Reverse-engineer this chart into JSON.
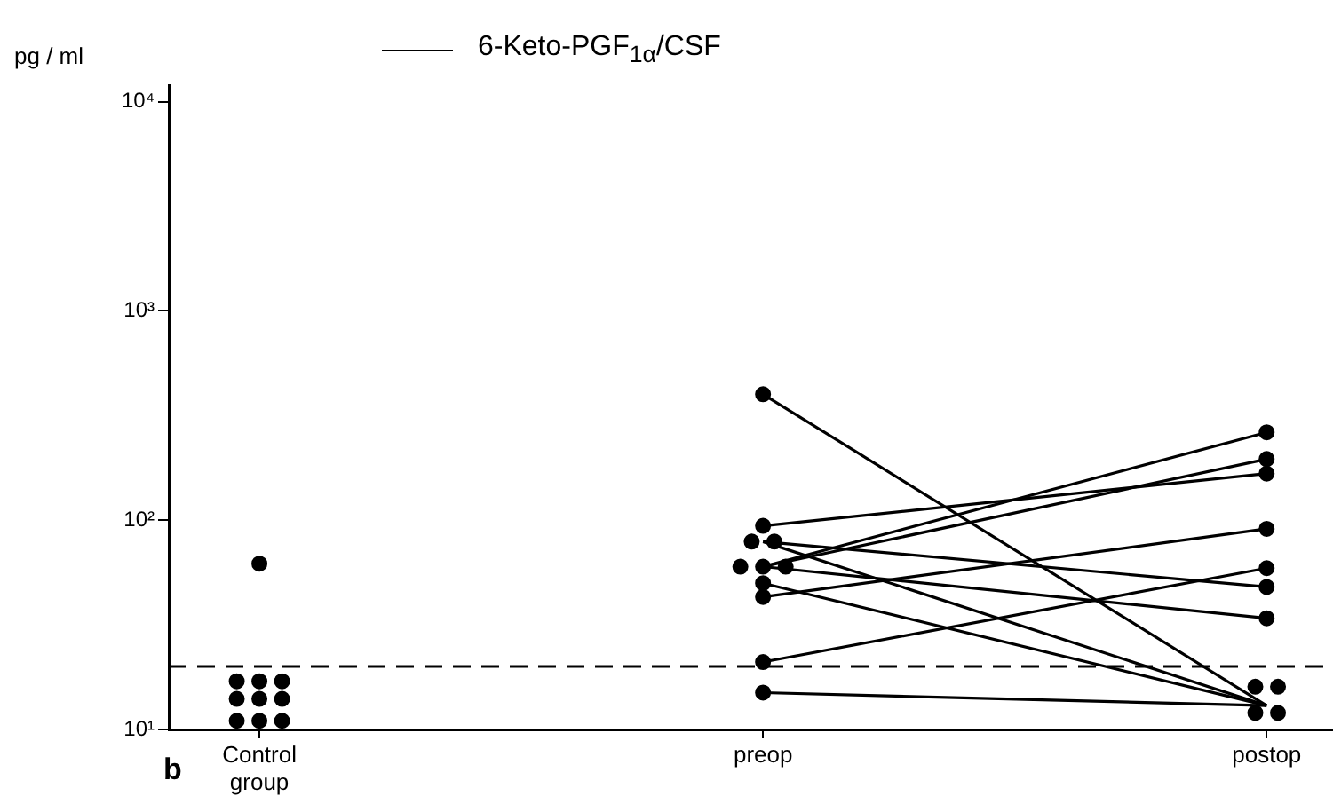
{
  "chart_data": {
    "type": "scatter",
    "ylabel": "pg / ml",
    "categories": [
      "Control group",
      "preop",
      "postop"
    ],
    "log": "y",
    "ylim": [
      10,
      12000
    ],
    "yticks": [
      {
        "value": 10,
        "label": "10¹"
      },
      {
        "value": 100,
        "label": "10²"
      },
      {
        "value": 1000,
        "label": "10³"
      },
      {
        "value": 10000,
        "label": "10⁴"
      }
    ],
    "legend": "top",
    "annotations": [
      "b"
    ],
    "ref_lines": [
      {
        "axis": "y",
        "value": 20,
        "line_style": "dashed",
        "color": "#000000"
      }
    ],
    "series": [
      {
        "type": "scatter",
        "marker": "circle",
        "color": "#000000",
        "x": [
          "Control group",
          "Control group",
          "Control group",
          "Control group",
          "Control group",
          "Control group",
          "Control group",
          "Control group",
          "Control group",
          "Control group",
          "preop",
          "preop",
          "preop",
          "preop",
          "preop",
          "preop",
          "preop",
          "preop",
          "preop",
          "preop",
          "preop",
          "postop",
          "postop",
          "postop",
          "postop",
          "postop",
          "postop",
          "postop",
          "postop",
          "postop",
          "postop",
          "postop"
        ],
        "values": [
          62,
          17,
          17,
          17,
          14,
          14,
          14,
          11,
          11,
          11,
          400,
          94,
          79,
          79,
          60,
          60,
          60,
          50,
          43,
          21,
          15,
          263,
          196,
          167,
          91,
          59,
          48,
          34,
          16,
          16,
          12,
          12
        ]
      },
      {
        "type": "line",
        "marker": "none",
        "name": "6-Keto-PGF$_{1α}$/CSF",
        "color": "#000000",
        "x": [
          "preop",
          "postop"
        ],
        "values": [
          400,
          13
        ]
      },
      {
        "type": "line",
        "marker": "none",
        "color": "#000000",
        "x": [
          "preop",
          "postop"
        ],
        "values": [
          94,
          167
        ]
      },
      {
        "type": "line",
        "marker": "none",
        "color": "#000000",
        "x": [
          "preop",
          "postop"
        ],
        "values": [
          60,
          263
        ]
      },
      {
        "type": "line",
        "marker": "none",
        "color": "#000000",
        "x": [
          "preop",
          "postop"
        ],
        "values": [
          60,
          196
        ]
      },
      {
        "type": "line",
        "marker": "none",
        "color": "#000000",
        "x": [
          "preop",
          "postop"
        ],
        "values": [
          43,
          91
        ]
      },
      {
        "type": "line",
        "marker": "none",
        "color": "#000000",
        "x": [
          "preop",
          "postop"
        ],
        "values": [
          21,
          59
        ]
      },
      {
        "type": "line",
        "marker": "none",
        "color": "#000000",
        "x": [
          "preop",
          "postop"
        ],
        "values": [
          79,
          48
        ]
      },
      {
        "type": "line",
        "marker": "none",
        "color": "#000000",
        "x": [
          "preop",
          "postop"
        ],
        "values": [
          60,
          34
        ]
      },
      {
        "type": "line",
        "marker": "none",
        "color": "#000000",
        "x": [
          "preop",
          "postop"
        ],
        "values": [
          79,
          13
        ]
      },
      {
        "type": "line",
        "marker": "none",
        "color": "#000000",
        "x": [
          "preop",
          "postop"
        ],
        "values": [
          50,
          13
        ]
      },
      {
        "type": "line",
        "marker": "none",
        "color": "#000000",
        "x": [
          "preop",
          "postop"
        ],
        "values": [
          15,
          13
        ]
      }
    ]
  }
}
